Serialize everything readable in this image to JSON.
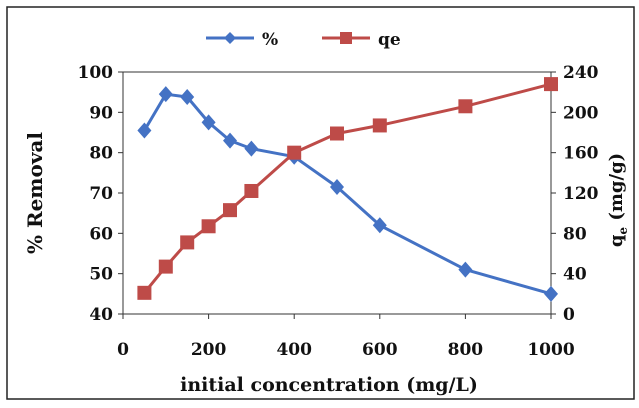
{
  "chart_data": {
    "type": "line",
    "xlabel": "initial concentration (mg/L)",
    "ylabel_left": "% Removal",
    "ylabel_right": {
      "main": "q",
      "sub": "e",
      "rest": " (mg/g)"
    },
    "x_ticks": [
      0,
      200,
      400,
      600,
      800,
      1000
    ],
    "xlim": [
      0,
      1000
    ],
    "ylim_left": [
      40,
      100
    ],
    "y_ticks_left": [
      40,
      50,
      60,
      70,
      80,
      90,
      100
    ],
    "ylim_right": [
      0,
      240
    ],
    "y_ticks_right": [
      0,
      40,
      80,
      120,
      160,
      200,
      240
    ],
    "grid": false,
    "legend_position": "top",
    "series": [
      {
        "name": "%",
        "axis": "left",
        "marker": "diamond",
        "color": "#4472C4",
        "x": [
          50,
          100,
          150,
          200,
          250,
          300,
          400,
          500,
          600,
          800,
          1000
        ],
        "y": [
          85.5,
          94.5,
          93.8,
          87.5,
          83,
          81,
          79,
          71.5,
          62,
          51,
          45
        ]
      },
      {
        "name": "qe",
        "axis": "right",
        "marker": "square",
        "color": "#BE4B48",
        "x": [
          50,
          100,
          150,
          200,
          250,
          300,
          400,
          500,
          600,
          800,
          1000
        ],
        "y": [
          21,
          47,
          71,
          87,
          103,
          122,
          160,
          179,
          187,
          206,
          228
        ]
      }
    ]
  }
}
